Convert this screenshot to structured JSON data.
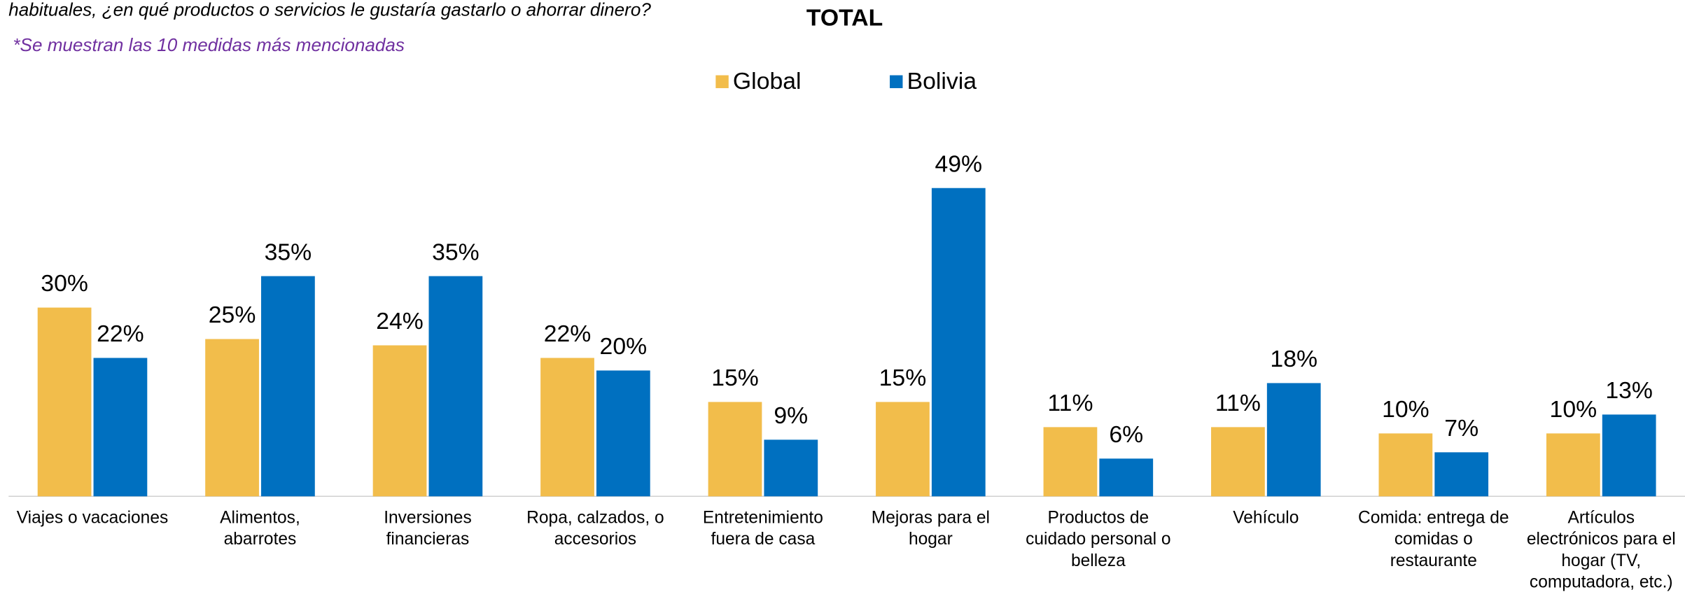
{
  "chart_data": {
    "type": "bar",
    "subtitle": "habituales, ¿en qué productos o servicios le gustaría gastarlo o ahorrar dinero?",
    "title": "TOTAL",
    "note": "*Se muestran las 10 medidas más mencionadas",
    "categories": [
      [
        "Viajes o vacaciones"
      ],
      [
        "Alimentos,",
        "abarrotes"
      ],
      [
        "Inversiones",
        "financieras"
      ],
      [
        "Ropa, calzados, o",
        "accesorios"
      ],
      [
        "Entretenimiento",
        "fuera de casa"
      ],
      [
        "Mejoras para el",
        "hogar"
      ],
      [
        "Productos de",
        "cuidado personal o",
        "belleza"
      ],
      [
        "Vehículo"
      ],
      [
        "Comida: entrega de",
        "comidas o",
        "restaurante"
      ],
      [
        "Artículos",
        "electrónicos para el",
        "hogar (TV,",
        "computadora, etc.)"
      ]
    ],
    "series": [
      {
        "name": "Global",
        "color": "#f2bd4b",
        "values": [
          30,
          25,
          24,
          22,
          15,
          15,
          11,
          11,
          10,
          10
        ],
        "value_labels": [
          "30%",
          "25%",
          "24%",
          "22%",
          "15%",
          "15%",
          "11%",
          "11%",
          "10%",
          "10%"
        ]
      },
      {
        "name": "Bolivia",
        "color": "#0070c0",
        "values": [
          22,
          35,
          35,
          20,
          9,
          49,
          6,
          18,
          7,
          13
        ],
        "value_labels": [
          "22%",
          "35%",
          "35%",
          "20%",
          "9%",
          "49%",
          "6%",
          "18%",
          "7%",
          "13%"
        ]
      }
    ]
  }
}
